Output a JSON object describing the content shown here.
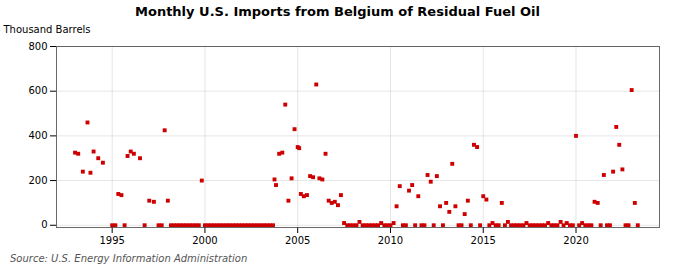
{
  "chart_data": {
    "type": "scatter",
    "title": "Monthly U.S. Imports from Belgium of Residual Fuel Oil",
    "ylabel": "Thousand Barrels",
    "source": "Source: U.S. Energy Information Administration",
    "color": "#cc0000",
    "marker": "square",
    "grid": true,
    "xlim": [
      1992.0,
      2024.5
    ],
    "xticks": [
      1995,
      2000,
      2005,
      2010,
      2015,
      2020
    ],
    "ylim": [
      -10,
      800
    ],
    "yticks": [
      0,
      200,
      400,
      600,
      800
    ],
    "x": [
      1993.0,
      1993.17,
      1993.42,
      1993.67,
      1993.83,
      1994.0,
      1994.25,
      1994.5,
      1995.0,
      1995.17,
      1995.33,
      1995.5,
      1995.67,
      1995.83,
      1996.0,
      1996.17,
      1996.5,
      1996.75,
      1997.0,
      1997.25,
      1997.5,
      1997.67,
      1997.83,
      1998.0,
      1998.17,
      1998.33,
      1998.5,
      1998.67,
      1998.83,
      1999.0,
      1999.17,
      1999.33,
      1999.5,
      1999.67,
      1999.83,
      2000.0,
      2000.17,
      2000.33,
      2000.5,
      2000.67,
      2000.83,
      2001.0,
      2001.17,
      2001.33,
      2001.5,
      2001.67,
      2001.83,
      2002.0,
      2002.17,
      2002.33,
      2002.5,
      2002.67,
      2002.83,
      2003.0,
      2003.17,
      2003.33,
      2003.5,
      2003.67,
      2003.75,
      2003.83,
      2004.0,
      2004.17,
      2004.33,
      2004.5,
      2004.67,
      2004.83,
      2005.0,
      2005.08,
      2005.17,
      2005.33,
      2005.5,
      2005.67,
      2005.83,
      2006.0,
      2006.17,
      2006.33,
      2006.5,
      2006.67,
      2006.83,
      2007.0,
      2007.17,
      2007.33,
      2007.5,
      2007.67,
      2007.83,
      2008.0,
      2008.17,
      2008.33,
      2008.5,
      2008.67,
      2008.83,
      2009.0,
      2009.17,
      2009.33,
      2009.5,
      2009.67,
      2009.83,
      2010.0,
      2010.17,
      2010.33,
      2010.5,
      2010.67,
      2010.83,
      2011.0,
      2011.17,
      2011.33,
      2011.5,
      2011.67,
      2011.83,
      2012.0,
      2012.17,
      2012.33,
      2012.5,
      2012.67,
      2012.83,
      2013.0,
      2013.17,
      2013.33,
      2013.5,
      2013.67,
      2013.83,
      2014.0,
      2014.17,
      2014.33,
      2014.5,
      2014.67,
      2014.83,
      2015.0,
      2015.17,
      2015.33,
      2015.5,
      2015.67,
      2015.83,
      2016.0,
      2016.17,
      2016.33,
      2016.5,
      2016.67,
      2016.83,
      2017.0,
      2017.17,
      2017.33,
      2017.5,
      2017.67,
      2017.83,
      2018.0,
      2018.17,
      2018.33,
      2018.5,
      2018.67,
      2018.83,
      2019.0,
      2019.17,
      2019.33,
      2019.5,
      2019.67,
      2019.83,
      2020.0,
      2020.17,
      2020.33,
      2020.5,
      2020.67,
      2020.83,
      2021.0,
      2021.17,
      2021.33,
      2021.5,
      2021.67,
      2021.83,
      2022.0,
      2022.17,
      2022.33,
      2022.5,
      2022.67,
      2022.83,
      2023.0,
      2023.17,
      2023.33
    ],
    "values": [
      325,
      320,
      240,
      460,
      235,
      330,
      300,
      280,
      0,
      0,
      140,
      135,
      0,
      310,
      330,
      320,
      300,
      0,
      110,
      105,
      0,
      0,
      425,
      110,
      0,
      0,
      0,
      0,
      0,
      0,
      0,
      0,
      0,
      0,
      200,
      0,
      0,
      0,
      0,
      0,
      0,
      0,
      0,
      0,
      0,
      0,
      0,
      0,
      0,
      0,
      0,
      0,
      0,
      0,
      0,
      0,
      0,
      0,
      205,
      180,
      320,
      325,
      540,
      110,
      210,
      430,
      350,
      345,
      140,
      130,
      135,
      220,
      215,
      630,
      210,
      205,
      320,
      110,
      100,
      105,
      90,
      135,
      10,
      0,
      0,
      0,
      0,
      15,
      0,
      0,
      0,
      0,
      0,
      0,
      10,
      0,
      0,
      0,
      10,
      85,
      175,
      0,
      0,
      155,
      180,
      0,
      130,
      0,
      0,
      225,
      195,
      0,
      220,
      85,
      0,
      100,
      60,
      275,
      85,
      0,
      0,
      50,
      110,
      0,
      360,
      350,
      0,
      130,
      115,
      0,
      10,
      0,
      0,
      100,
      0,
      15,
      0,
      0,
      0,
      0,
      0,
      10,
      0,
      0,
      0,
      0,
      0,
      0,
      10,
      0,
      0,
      0,
      15,
      0,
      10,
      0,
      0,
      400,
      0,
      10,
      0,
      0,
      0,
      105,
      100,
      0,
      225,
      0,
      0,
      240,
      440,
      360,
      250,
      0,
      0,
      605,
      100,
      0
    ]
  }
}
